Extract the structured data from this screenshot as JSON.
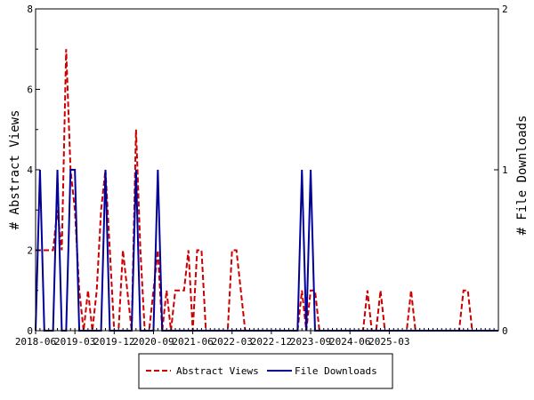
{
  "chart_data": {
    "type": "line",
    "x_tick_labels": [
      "2018-06",
      "2019-03",
      "2019-12",
      "2020-09",
      "2021-06",
      "2022-03",
      "2022-12",
      "2023-09",
      "2024-06",
      "2025-03"
    ],
    "y_left": {
      "label": "# Abstract Views",
      "range": [
        0,
        8
      ],
      "ticks": [
        "0",
        "2",
        "4",
        "6",
        "8"
      ]
    },
    "y_right": {
      "label": "# File Downloads",
      "range": [
        0,
        2
      ],
      "ticks": [
        "0",
        "1",
        "2"
      ]
    },
    "grid": false,
    "legend_position": "bottom-center",
    "month_start": "2018-06",
    "series": [
      {
        "name": "Abstract Views",
        "axis": "left",
        "color": "#cc0000",
        "style": "dashed",
        "values": [
          2,
          2,
          2,
          2,
          2,
          3,
          2,
          7,
          4,
          3,
          1,
          0,
          1,
          0,
          1,
          3,
          4,
          2,
          0,
          0,
          2,
          1,
          0,
          5,
          2,
          0,
          0,
          1,
          2,
          0,
          1,
          0,
          1,
          1,
          1,
          2,
          0,
          2,
          2,
          0,
          0,
          0,
          0,
          0,
          0,
          2,
          2,
          1,
          0,
          0,
          0,
          0,
          0,
          0,
          0,
          0,
          0,
          0,
          0,
          0,
          0,
          1,
          0,
          1,
          1,
          0,
          0,
          0,
          0,
          0,
          0,
          0,
          0,
          0,
          0,
          0,
          1,
          0,
          0,
          1,
          0,
          0,
          0,
          0,
          0,
          0,
          1,
          0,
          0,
          0,
          0,
          0,
          0,
          0,
          0,
          0,
          0,
          0,
          1,
          1,
          0,
          0,
          0,
          0,
          0,
          0,
          0
        ]
      },
      {
        "name": "File Downloads",
        "axis": "right",
        "color": "#000099",
        "style": "solid",
        "values": [
          0,
          1,
          0,
          0,
          0,
          1,
          0,
          0,
          1,
          1,
          0,
          0,
          0,
          0,
          0,
          0,
          1,
          0,
          0,
          0,
          0,
          0,
          0,
          1,
          0,
          0,
          0,
          0,
          1,
          0,
          0,
          0,
          0,
          0,
          0,
          0,
          0,
          0,
          0,
          0,
          0,
          0,
          0,
          0,
          0,
          0,
          0,
          0,
          0,
          0,
          0,
          0,
          0,
          0,
          0,
          0,
          0,
          0,
          0,
          0,
          0,
          1,
          0,
          1,
          0,
          0,
          0,
          0,
          0,
          0,
          0,
          0,
          0,
          0,
          0,
          0,
          0,
          0,
          0,
          0,
          0,
          0,
          0,
          0,
          0,
          0,
          0,
          0,
          0,
          0,
          0,
          0,
          0,
          0,
          0,
          0,
          0,
          0,
          0,
          0,
          0,
          0,
          0,
          0,
          0,
          0,
          0
        ]
      }
    ]
  },
  "legend": {
    "items": [
      {
        "label": "Abstract Views",
        "color": "#cc0000",
        "style": "dashed"
      },
      {
        "label": "File Downloads",
        "color": "#000099",
        "style": "solid"
      }
    ]
  }
}
